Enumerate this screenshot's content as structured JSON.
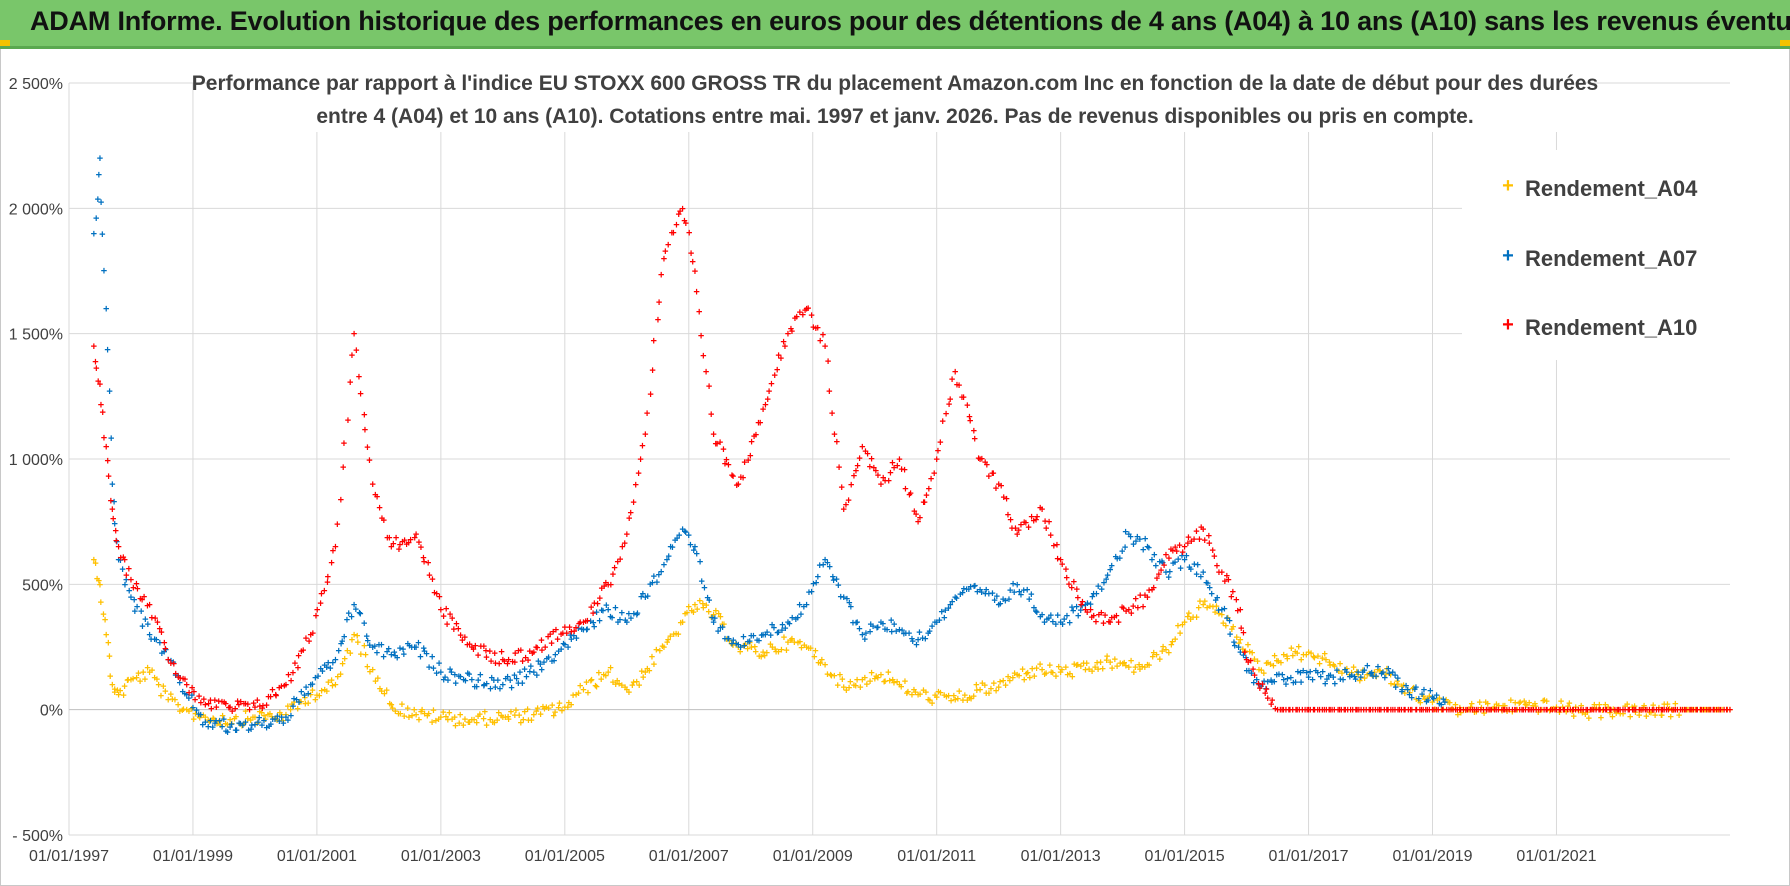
{
  "header": {
    "title": "ADAM Informe. Evolution historique des performances en euros pour des détentions de 4 ans (A04) à 10 ans (A10) sans les revenus éventuels"
  },
  "colors": {
    "banner": "#79c66a",
    "a04": "#ffc000",
    "a07": "#0070c0",
    "a10": "#ff0000",
    "grid": "#d9d9d9",
    "text": "#404040"
  },
  "chart_data": {
    "type": "scatter",
    "title_line1": "Performance par rapport à l'indice EU STOXX 600 GROSS TR  du placement Amazon.com Inc en fonction de la date de début pour des durées",
    "title_line2": "entre 4 (A04) et 10 ans (A10).  Cotations entre mai. 1997 et janv. 2026.  Pas de revenus disponibles ou pris en compte.",
    "xlabel": "",
    "ylabel": "",
    "xlim": [
      1997.0,
      2023.8
    ],
    "ylim": [
      -500,
      2500
    ],
    "y_ticks": [
      -500,
      0,
      500,
      1000,
      1500,
      2000,
      2500
    ],
    "y_tick_labels": [
      "- 500%",
      "0%",
      "500%",
      "1 000%",
      "1 500%",
      "2 000%",
      "2 500%"
    ],
    "x_ticks": [
      1997,
      1999,
      2001,
      2003,
      2005,
      2007,
      2009,
      2011,
      2013,
      2015,
      2017,
      2019,
      2021
    ],
    "x_tick_labels": [
      "01/01/1997",
      "01/01/1999",
      "01/01/2001",
      "01/01/2003",
      "01/01/2005",
      "01/01/2007",
      "01/01/2009",
      "01/01/2011",
      "01/01/2013",
      "01/01/2015",
      "01/01/2017",
      "01/01/2019",
      "01/01/2021"
    ],
    "grid": true,
    "legend_position": "top-right",
    "series": [
      {
        "name": "Rendement_A04",
        "color": "#ffc000",
        "x": [
          1997.4,
          1997.5,
          1997.6,
          1997.7,
          1997.8,
          1998.0,
          1998.3,
          1998.6,
          1998.9,
          1999.2,
          1999.6,
          2000.0,
          2000.5,
          2000.9,
          2001.3,
          2001.6,
          2001.9,
          2002.2,
          2002.6,
          2003.0,
          2003.5,
          2004.0,
          2004.5,
          2005.0,
          2005.3,
          2005.7,
          2006.0,
          2006.3,
          2006.6,
          2006.9,
          2007.1,
          2007.4,
          2007.8,
          2008.2,
          2008.6,
          2008.9,
          2009.2,
          2009.5,
          2009.8,
          2010.1,
          2010.4,
          2010.7,
          2011.0,
          2011.3,
          2011.7,
          2012.0,
          2012.3,
          2012.7,
          2013.0,
          2013.4,
          2013.8,
          2014.1,
          2014.4,
          2014.7,
          2015.0,
          2015.3,
          2015.6,
          2015.9,
          2016.2,
          2016.6,
          2017.0,
          2017.4,
          2017.8,
          2018.2,
          2018.6,
          2019.0,
          2019.5,
          2020.0,
          2020.5,
          2021.0,
          2021.5,
          2022.0,
          2022.5,
          2023.0,
          2023.8
        ],
        "values": [
          600,
          500,
          300,
          100,
          60,
          120,
          150,
          40,
          0,
          -30,
          -40,
          -30,
          -20,
          60,
          100,
          300,
          160,
          20,
          -20,
          -30,
          -40,
          -30,
          -20,
          10,
          80,
          150,
          80,
          150,
          250,
          350,
          420,
          380,
          250,
          230,
          270,
          250,
          180,
          90,
          120,
          140,
          100,
          60,
          50,
          40,
          80,
          90,
          140,
          160,
          150,
          160,
          190,
          170,
          180,
          240,
          350,
          420,
          380,
          280,
          160,
          220,
          230,
          180,
          140,
          150,
          80,
          30,
          0,
          10,
          20,
          10,
          -10,
          0,
          -10,
          0,
          0
        ]
      },
      {
        "name": "Rendement_A07",
        "color": "#0070c0",
        "x": [
          1997.4,
          1997.5,
          1997.6,
          1997.7,
          1997.8,
          1998.0,
          1998.3,
          1998.6,
          1998.9,
          1999.2,
          1999.6,
          2000.0,
          2000.5,
          2000.9,
          2001.3,
          2001.6,
          2001.9,
          2002.2,
          2002.6,
          2003.0,
          2003.5,
          2004.0,
          2004.5,
          2005.0,
          2005.3,
          2005.7,
          2006.0,
          2006.3,
          2006.6,
          2006.9,
          2007.1,
          2007.4,
          2007.8,
          2008.2,
          2008.6,
          2008.9,
          2009.2,
          2009.5,
          2009.8,
          2010.1,
          2010.4,
          2010.7,
          2011.0,
          2011.3,
          2011.7,
          2012.0,
          2012.3,
          2012.7,
          2013.0,
          2013.4,
          2013.8,
          2014.1,
          2014.4,
          2014.7,
          2015.0,
          2015.3,
          2015.6,
          2015.9,
          2016.2,
          2016.6,
          2017.0,
          2017.4,
          2017.8,
          2018.2,
          2018.6,
          2019.0,
          2019.2
        ],
        "values": [
          1900,
          2200,
          1600,
          900,
          600,
          450,
          300,
          200,
          60,
          -50,
          -70,
          -60,
          -30,
          100,
          200,
          420,
          250,
          220,
          250,
          150,
          120,
          100,
          150,
          260,
          320,
          400,
          350,
          450,
          580,
          720,
          650,
          350,
          260,
          300,
          350,
          420,
          600,
          450,
          300,
          350,
          320,
          280,
          350,
          450,
          480,
          420,
          500,
          380,
          350,
          420,
          560,
          700,
          650,
          550,
          600,
          550,
          400,
          230,
          100,
          120,
          130,
          130,
          150,
          150,
          80,
          50,
          30
        ]
      },
      {
        "name": "Rendement_A10",
        "color": "#ff0000",
        "x": [
          1997.4,
          1997.5,
          1997.6,
          1997.7,
          1997.8,
          1998.0,
          1998.3,
          1998.6,
          1998.9,
          1999.2,
          1999.6,
          2000.0,
          2000.5,
          2000.9,
          2001.3,
          2001.6,
          2001.9,
          2002.2,
          2002.6,
          2003.0,
          2003.5,
          2004.0,
          2004.5,
          2005.0,
          2005.3,
          2005.7,
          2006.0,
          2006.3,
          2006.6,
          2006.9,
          2007.1,
          2007.4,
          2007.8,
          2008.2,
          2008.6,
          2008.9,
          2009.2,
          2009.5,
          2009.8,
          2010.1,
          2010.4,
          2010.7,
          2011.0,
          2011.3,
          2011.7,
          2012.0,
          2012.3,
          2012.7,
          2013.0,
          2013.4,
          2013.8,
          2014.1,
          2014.4,
          2014.7,
          2015.0,
          2015.3,
          2015.6,
          2015.9,
          2016.0,
          2016.5,
          2017.0,
          2017.5,
          2018.0,
          2018.5,
          2019.0,
          2019.5,
          2020.0,
          2020.5,
          2021.0,
          2021.5,
          2022.0,
          2022.5,
          2023.0,
          2023.8
        ],
        "values": [
          1450,
          1300,
          1050,
          800,
          650,
          520,
          420,
          200,
          100,
          20,
          10,
          10,
          100,
          300,
          650,
          1500,
          900,
          650,
          700,
          400,
          250,
          200,
          230,
          330,
          350,
          500,
          700,
          1100,
          1800,
          2000,
          1750,
          1100,
          900,
          1200,
          1500,
          1600,
          1450,
          800,
          1050,
          900,
          1000,
          750,
          1000,
          1350,
          1000,
          900,
          700,
          800,
          600,
          400,
          350,
          400,
          450,
          620,
          650,
          720,
          550,
          400,
          200,
          0,
          0,
          0,
          0,
          0,
          0,
          0,
          0,
          0,
          0,
          0,
          0,
          0,
          0,
          0
        ]
      }
    ]
  }
}
